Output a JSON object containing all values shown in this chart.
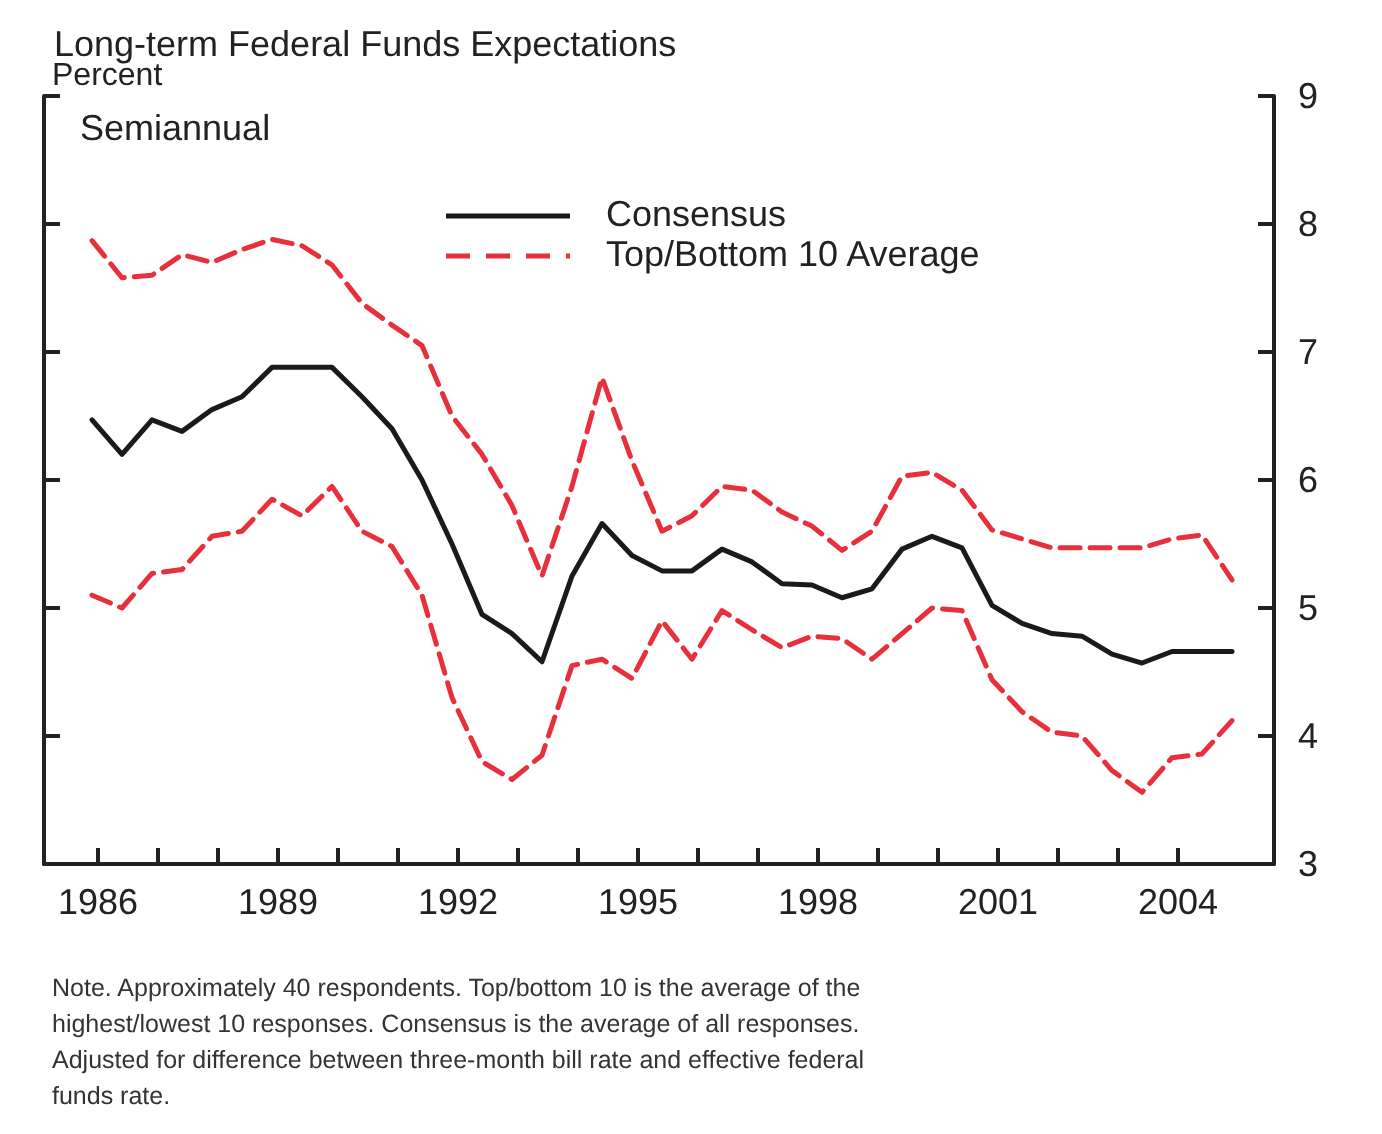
{
  "chart_data": {
    "type": "line",
    "title": "Long-term Federal Funds Expectations",
    "ylabel": "Percent",
    "annotations": [
      "Semiannual",
      "Note. Approximately 40 respondents. Top/bottom 10 is the average of the\nhighest/lowest 10 responses. Consensus is the average of all responses.\nAdjusted for difference between three-month bill rate and effective federal\nfunds rate."
    ],
    "x": [
      1985.9,
      1986.4,
      1986.9,
      1987.4,
      1987.9,
      1988.4,
      1988.9,
      1989.4,
      1989.9,
      1990.4,
      1990.9,
      1991.4,
      1991.9,
      1992.4,
      1992.9,
      1993.4,
      1993.9,
      1994.4,
      1994.9,
      1995.4,
      1995.9,
      1996.4,
      1996.9,
      1997.4,
      1997.9,
      1998.4,
      1998.9,
      1999.4,
      1999.9,
      2000.4,
      2000.9,
      2001.4,
      2001.9,
      2002.4,
      2002.9,
      2003.4,
      2003.9,
      2004.4,
      2004.9
    ],
    "series": [
      {
        "name": "Consensus",
        "color": "#1a1a1a",
        "line_style": "solid",
        "values": [
          6.47,
          6.2,
          6.47,
          6.38,
          6.55,
          6.65,
          6.88,
          6.88,
          6.88,
          6.65,
          6.4,
          6.0,
          5.5,
          4.95,
          4.8,
          4.58,
          5.25,
          5.66,
          5.41,
          5.29,
          5.29,
          5.46,
          5.36,
          5.19,
          5.18,
          5.08,
          5.15,
          5.46,
          5.56,
          5.47,
          5.02,
          4.88,
          4.8,
          4.78,
          4.64,
          4.57,
          4.66,
          4.66,
          4.66
        ]
      },
      {
        "name": "Top/Bottom 10 Average",
        "color": "#e8303c",
        "line_style": "dashed",
        "values": [
          7.87,
          7.58,
          7.6,
          7.76,
          7.7,
          7.8,
          7.88,
          7.83,
          7.68,
          7.38,
          7.21,
          7.05,
          6.5,
          6.2,
          5.8,
          5.25,
          5.95,
          6.8,
          6.15,
          5.6,
          5.72,
          5.95,
          5.92,
          5.75,
          5.64,
          5.45,
          5.6,
          6.03,
          6.06,
          5.92,
          5.61,
          5.54,
          5.47,
          5.47,
          5.47,
          5.47,
          5.54,
          5.57,
          5.22
        ]
      },
      {
        "color": "#e8303c",
        "line_style": "dashed",
        "values": [
          5.1,
          5.0,
          5.27,
          5.3,
          5.56,
          5.6,
          5.85,
          5.72,
          5.95,
          5.6,
          5.48,
          5.1,
          4.3,
          3.8,
          3.66,
          3.85,
          4.55,
          4.6,
          4.45,
          4.9,
          4.6,
          4.98,
          4.83,
          4.69,
          4.78,
          4.76,
          4.6,
          4.8,
          5.0,
          4.98,
          4.44,
          4.19,
          4.03,
          4.0,
          3.73,
          3.56,
          3.83,
          3.86,
          4.12
        ]
      }
    ],
    "xlim": [
      1985.1,
      2005.6
    ],
    "xticks": [
      1986,
      {
        "value": 1987,
        "label": null
      },
      {
        "value": 1988,
        "label": null
      },
      1989,
      {
        "value": 1990,
        "label": null
      },
      {
        "value": 1991,
        "label": null
      },
      1992,
      {
        "value": 1993,
        "label": null
      },
      {
        "value": 1994,
        "label": null
      },
      1995,
      {
        "value": 1996,
        "label": null
      },
      {
        "value": 1997,
        "label": null
      },
      1998,
      {
        "value": 1999,
        "label": null
      },
      {
        "value": 2000,
        "label": null
      },
      2001,
      {
        "value": 2002,
        "label": null
      },
      {
        "value": 2003,
        "label": null
      },
      2004
    ],
    "ylim": [
      3,
      9
    ],
    "yticks": [
      3,
      4,
      5,
      6,
      7,
      8,
      9
    ],
    "grid": false,
    "legend": "top",
    "marker": "none"
  }
}
